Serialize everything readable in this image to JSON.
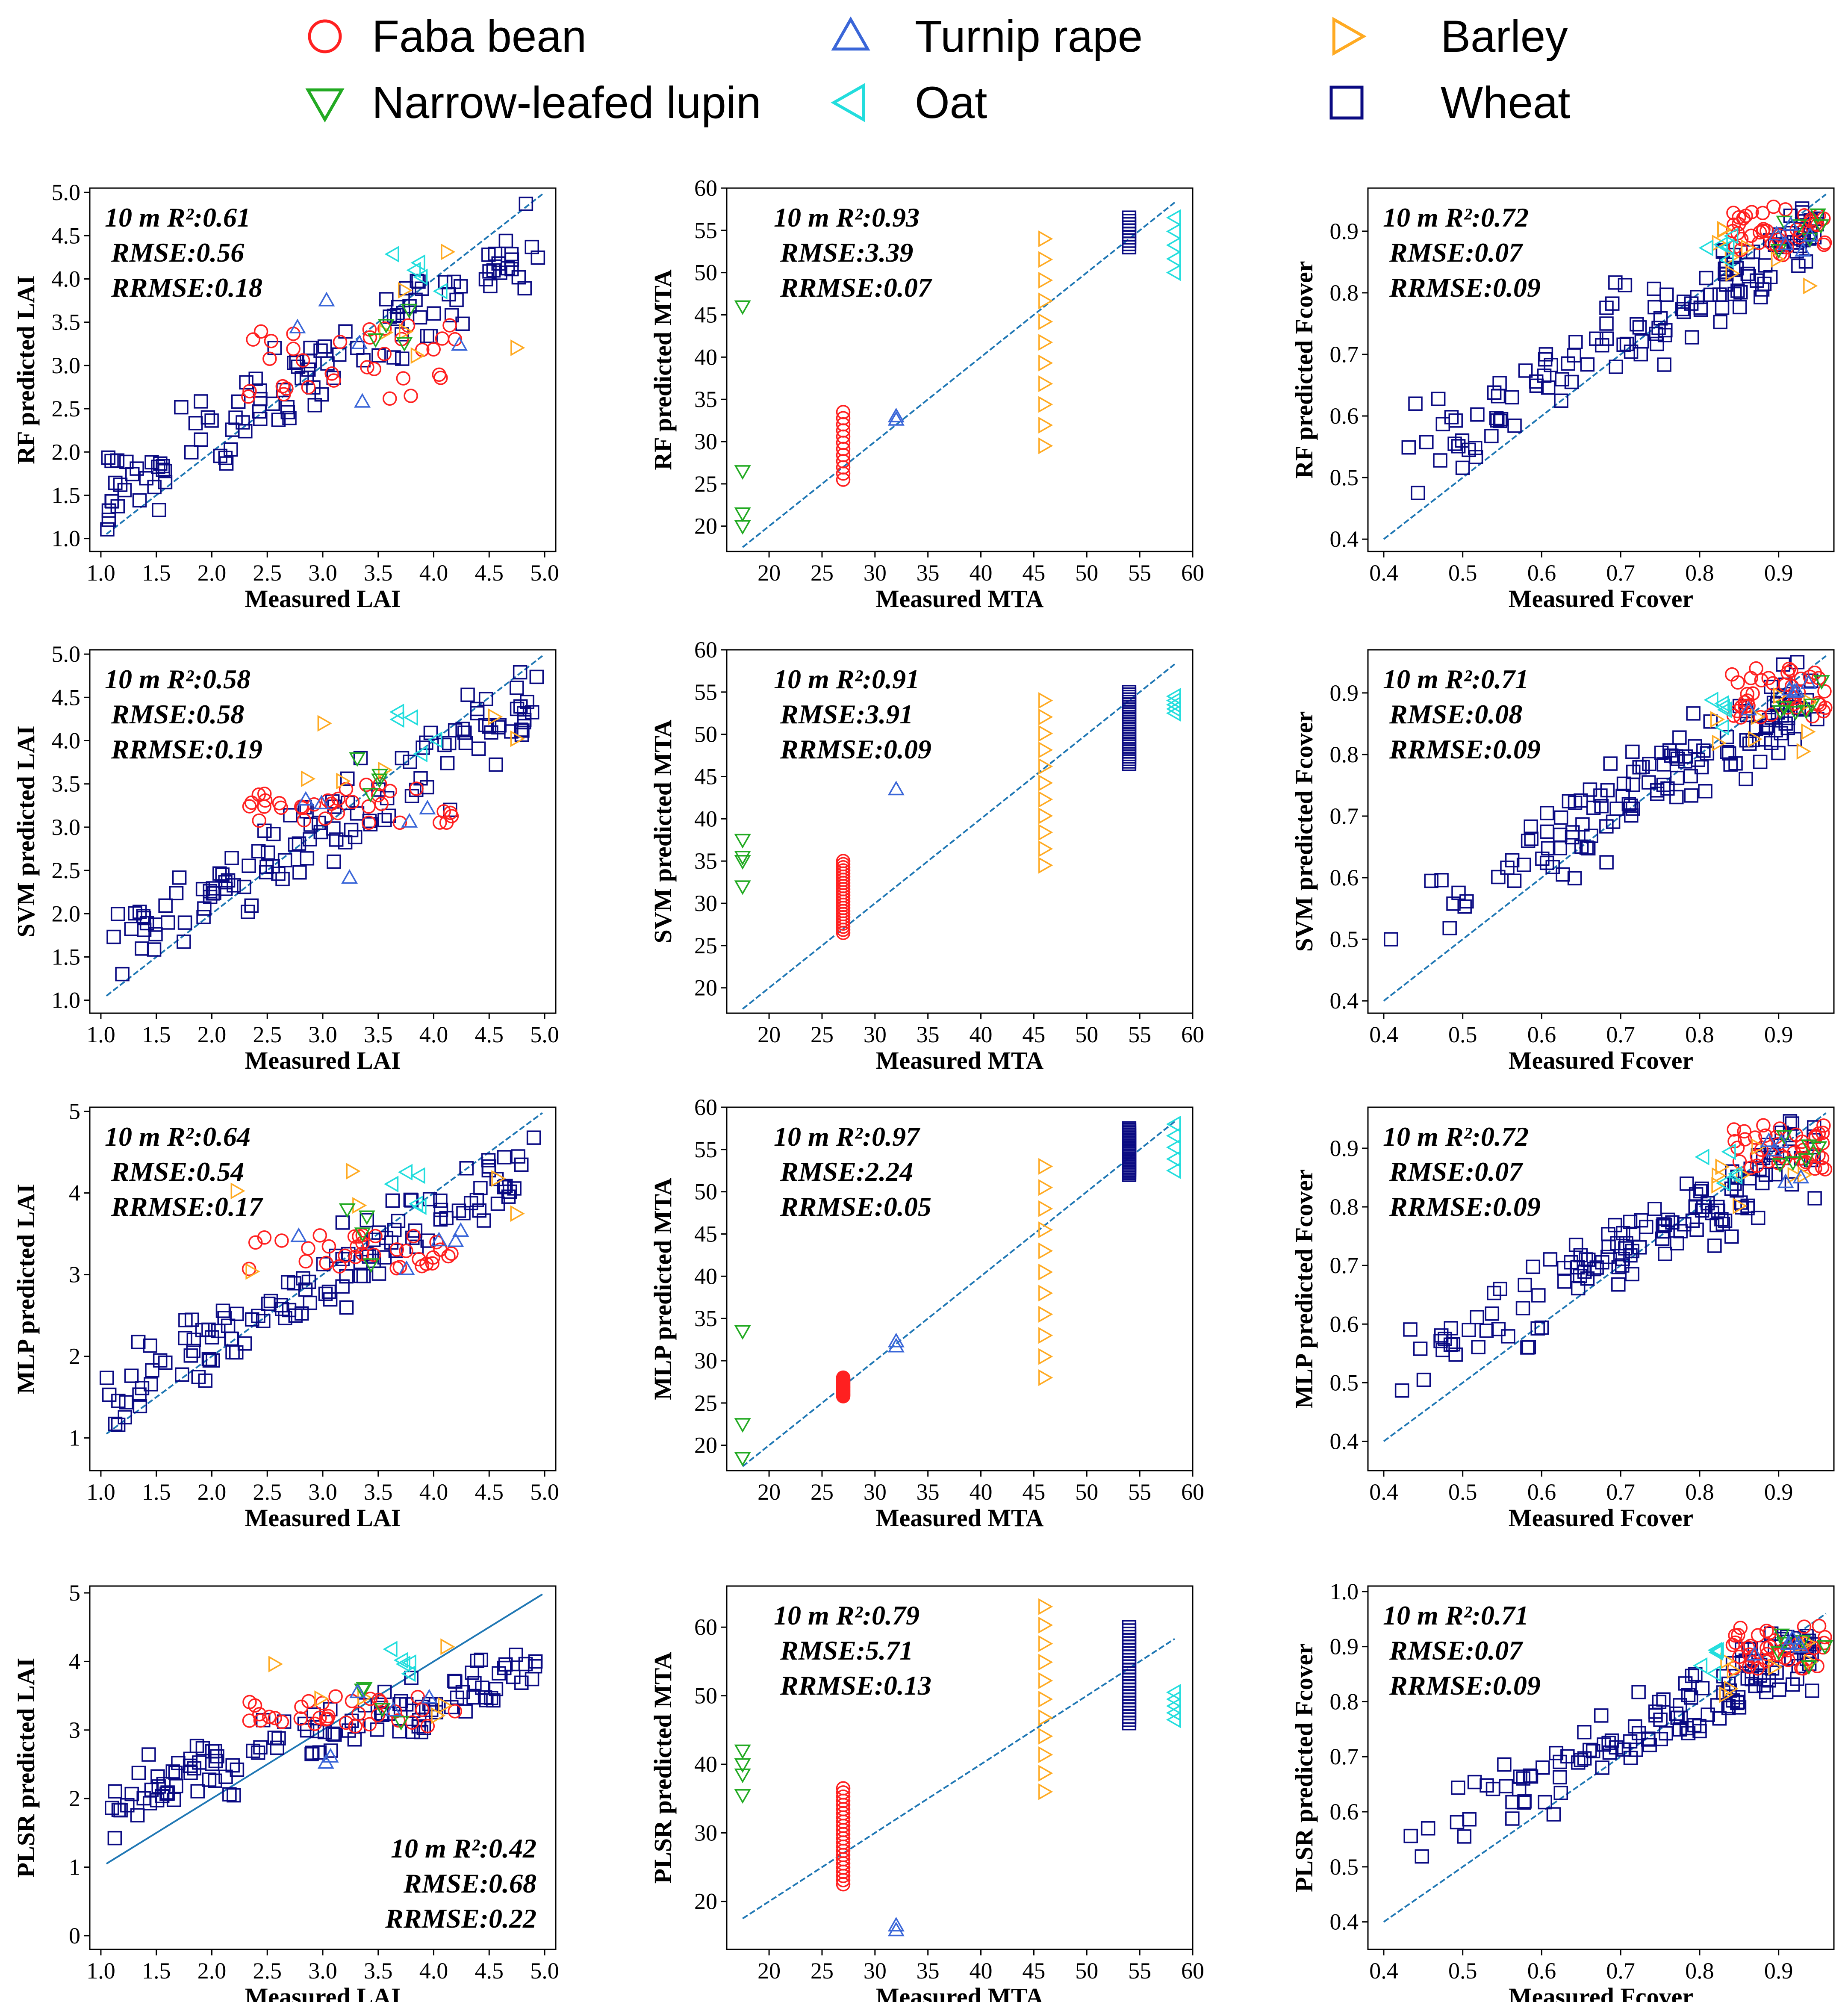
{
  "colors": {
    "faba": "#ff2020",
    "lupin": "#22aa22",
    "turnip": "#3a66d8",
    "oat": "#22dddd",
    "barley": "#ffaa22",
    "wheat": "#0a0a82",
    "fit": "#1f77b4"
  },
  "legend": [
    {
      "key": "faba",
      "marker": "circle",
      "label": "Faba bean"
    },
    {
      "key": "turnip",
      "marker": "tri-up",
      "label": "Turnip rape"
    },
    {
      "key": "barley",
      "marker": "tri-right",
      "label": "Barley"
    },
    {
      "key": "lupin",
      "marker": "tri-down",
      "label": "Narrow-leafed  lupin"
    },
    {
      "key": "oat",
      "marker": "tri-left",
      "label": "Oat"
    },
    {
      "key": "wheat",
      "marker": "square",
      "label": "Wheat"
    }
  ],
  "chart_data": [
    {
      "type": "scatter",
      "variable": "LAI",
      "model": "RF",
      "xlabel": "Measured LAI",
      "ylabel": "RF predicted LAI",
      "xlim": [
        0.9,
        5.1
      ],
      "ylim": [
        0.85,
        5.05
      ],
      "xticks": [
        "1.0",
        "1.5",
        "2.0",
        "2.5",
        "3.0",
        "3.5",
        "4.0",
        "4.5",
        "5.0"
      ],
      "yticks": [
        "1.0",
        "1.5",
        "2.0",
        "2.5",
        "3.0",
        "3.5",
        "4.0",
        "4.5",
        "5.0"
      ],
      "fit": [
        [
          1.05,
          1.05
        ],
        [
          4.98,
          4.98
        ]
      ],
      "stats": [
        "10 m R²:0.61",
        "RMSE:0.56",
        "RRMSE:0.18"
      ],
      "stats_pos": "top-left"
    },
    {
      "type": "scatter",
      "variable": "MTA",
      "model": "RF",
      "xlabel": "Measured MTA",
      "ylabel": "RF predicted MTA",
      "xlim": [
        16,
        60
      ],
      "ylim": [
        17,
        60
      ],
      "xticks": [
        "20",
        "25",
        "30",
        "35",
        "40",
        "45",
        "50",
        "55",
        "60"
      ],
      "yticks": [
        "20",
        "25",
        "30",
        "35",
        "40",
        "45",
        "50",
        "55",
        "60"
      ],
      "fit": [
        [
          17.5,
          17.5
        ],
        [
          58.3,
          58.3
        ]
      ],
      "stats": [
        "10 m R²:0.93",
        "RMSE:3.39",
        "RRMSE:0.07"
      ],
      "stats_pos": "top-left"
    },
    {
      "type": "scatter",
      "variable": "Fcover",
      "model": "RF",
      "xlabel": "Measured Fcover",
      "ylabel": "RF predicted Fcover",
      "xlim": [
        0.38,
        0.97
      ],
      "ylim": [
        0.38,
        0.97
      ],
      "xticks": [
        "0.4",
        "0.5",
        "0.6",
        "0.7",
        "0.8",
        "0.9"
      ],
      "yticks": [
        "0.4",
        "0.5",
        "0.6",
        "0.7",
        "0.8",
        "0.9"
      ],
      "fit": [
        [
          0.4,
          0.4
        ],
        [
          0.96,
          0.96
        ]
      ],
      "stats": [
        "10 m R²:0.72",
        "RMSE:0.07",
        "RRMSE:0.09"
      ],
      "stats_pos": "top-left"
    },
    {
      "type": "scatter",
      "variable": "LAI",
      "model": "SVM",
      "xlabel": "Measured LAI",
      "ylabel": "SVM predicted LAI",
      "xlim": [
        0.9,
        5.1
      ],
      "ylim": [
        0.85,
        5.05
      ],
      "xticks": [
        "1.0",
        "1.5",
        "2.0",
        "2.5",
        "3.0",
        "3.5",
        "4.0",
        "4.5",
        "5.0"
      ],
      "yticks": [
        "1.0",
        "1.5",
        "2.0",
        "2.5",
        "3.0",
        "3.5",
        "4.0",
        "4.5",
        "5.0"
      ],
      "fit": [
        [
          1.05,
          1.05
        ],
        [
          4.98,
          4.98
        ]
      ],
      "stats": [
        "10 m R²:0.58",
        "RMSE:0.58",
        "RRMSE:0.19"
      ],
      "stats_pos": "top-left"
    },
    {
      "type": "scatter",
      "variable": "MTA",
      "model": "SVM",
      "xlabel": "Measured MTA",
      "ylabel": "SVM predicted MTA",
      "xlim": [
        16,
        60
      ],
      "ylim": [
        17,
        60
      ],
      "xticks": [
        "20",
        "25",
        "30",
        "35",
        "40",
        "45",
        "50",
        "55",
        "60"
      ],
      "yticks": [
        "20",
        "25",
        "30",
        "35",
        "40",
        "45",
        "50",
        "55",
        "60"
      ],
      "fit": [
        [
          17.5,
          17.5
        ],
        [
          58.3,
          58.3
        ]
      ],
      "stats": [
        "10 m R²:0.91",
        "RMSE:3.91",
        "RRMSE:0.09"
      ],
      "stats_pos": "top-left"
    },
    {
      "type": "scatter",
      "variable": "Fcover",
      "model": "SVM",
      "xlabel": "Measured Fcover",
      "ylabel": "SVM predicted Fcover",
      "xlim": [
        0.38,
        0.97
      ],
      "ylim": [
        0.38,
        0.97
      ],
      "xticks": [
        "0.4",
        "0.5",
        "0.6",
        "0.7",
        "0.8",
        "0.9"
      ],
      "yticks": [
        "0.4",
        "0.5",
        "0.6",
        "0.7",
        "0.8",
        "0.9"
      ],
      "fit": [
        [
          0.4,
          0.4
        ],
        [
          0.96,
          0.96
        ]
      ],
      "stats": [
        "10 m R²:0.71",
        "RMSE:0.08",
        "RRMSE:0.09"
      ],
      "stats_pos": "top-left"
    },
    {
      "type": "scatter",
      "variable": "LAI",
      "model": "MLP",
      "xlabel": "Measured LAI",
      "ylabel": "MLP predicted LAI",
      "xlim": [
        0.9,
        5.1
      ],
      "ylim": [
        0.6,
        5.05
      ],
      "xticks": [
        "1.0",
        "1.5",
        "2.0",
        "2.5",
        "3.0",
        "3.5",
        "4.0",
        "4.5",
        "5.0"
      ],
      "yticks": [
        "1",
        "2",
        "3",
        "4",
        "5"
      ],
      "fit": [
        [
          1.05,
          1.05
        ],
        [
          4.98,
          4.98
        ]
      ],
      "stats": [
        "10 m R²:0.64",
        "RMSE:0.54",
        "RRMSE:0.17"
      ],
      "stats_pos": "top-left"
    },
    {
      "type": "scatter",
      "variable": "MTA",
      "model": "MLP",
      "xlabel": "Measured MTA",
      "ylabel": "MLP predicted MTA",
      "xlim": [
        16,
        60
      ],
      "ylim": [
        17,
        60
      ],
      "xticks": [
        "20",
        "25",
        "30",
        "35",
        "40",
        "45",
        "50",
        "55",
        "60"
      ],
      "yticks": [
        "20",
        "25",
        "30",
        "35",
        "40",
        "45",
        "50",
        "55",
        "60"
      ],
      "fit": [
        [
          17.5,
          17.5
        ],
        [
          58.3,
          58.3
        ]
      ],
      "stats": [
        "10 m R²:0.97",
        "RMSE:2.24",
        "RRMSE:0.05"
      ],
      "stats_pos": "top-left"
    },
    {
      "type": "scatter",
      "variable": "Fcover",
      "model": "MLP",
      "xlabel": "Measured Fcover",
      "ylabel": "MLP predicted Fcover",
      "xlim": [
        0.38,
        0.97
      ],
      "ylim": [
        0.35,
        0.97
      ],
      "xticks": [
        "0.4",
        "0.5",
        "0.6",
        "0.7",
        "0.8",
        "0.9"
      ],
      "yticks": [
        "0.4",
        "0.5",
        "0.6",
        "0.7",
        "0.8",
        "0.9"
      ],
      "fit": [
        [
          0.4,
          0.4
        ],
        [
          0.96,
          0.96
        ]
      ],
      "stats": [
        "10 m R²:0.72",
        "RMSE:0.07",
        "RRMSE:0.09"
      ],
      "stats_pos": "top-left"
    },
    {
      "type": "scatter",
      "variable": "LAI",
      "model": "PLSR",
      "xlabel": "Measured LAI",
      "ylabel": "PLSR predicted LAI",
      "xlim": [
        0.9,
        5.1
      ],
      "ylim": [
        -0.2,
        5.1
      ],
      "xticks": [
        "1.0",
        "1.5",
        "2.0",
        "2.5",
        "3.0",
        "3.5",
        "4.0",
        "4.5",
        "5.0"
      ],
      "yticks": [
        "0",
        "1",
        "2",
        "3",
        "4",
        "5"
      ],
      "fit": [
        [
          1.05,
          1.05
        ],
        [
          4.98,
          4.98
        ]
      ],
      "stats": [
        "10 m R²:0.42",
        "RMSE:0.68",
        "RRMSE:0.22"
      ],
      "stats_pos": "bottom-right"
    },
    {
      "type": "scatter",
      "variable": "MTA",
      "model": "PLSR",
      "xlabel": "Measured MTA",
      "ylabel": "PLSR predicted MTA",
      "xlim": [
        16,
        60
      ],
      "ylim": [
        13,
        66
      ],
      "xticks": [
        "20",
        "25",
        "30",
        "35",
        "40",
        "45",
        "50",
        "55",
        "60"
      ],
      "yticks": [
        "20",
        "30",
        "40",
        "50",
        "60"
      ],
      "fit": [
        [
          17.5,
          17.5
        ],
        [
          58.3,
          58.3
        ]
      ],
      "stats": [
        "10 m R²:0.79",
        "RMSE:5.71",
        "RRMSE:0.13"
      ],
      "stats_pos": "top-left"
    },
    {
      "type": "scatter",
      "variable": "Fcover",
      "model": "PLSR",
      "xlabel": "Measured Fcover",
      "ylabel": "PLSR predicted Fcover",
      "xlim": [
        0.38,
        0.97
      ],
      "ylim": [
        0.35,
        1.01
      ],
      "xticks": [
        "0.4",
        "0.5",
        "0.6",
        "0.7",
        "0.8",
        "0.9"
      ],
      "yticks": [
        "0.4",
        "0.5",
        "0.6",
        "0.7",
        "0.8",
        "0.9",
        "1.0"
      ],
      "fit": [
        [
          0.4,
          0.4
        ],
        [
          0.96,
          0.96
        ]
      ],
      "stats": [
        "10 m R²:0.71",
        "RMSE:0.07",
        "RRMSE:0.09"
      ],
      "stats_pos": "top-left"
    }
  ]
}
